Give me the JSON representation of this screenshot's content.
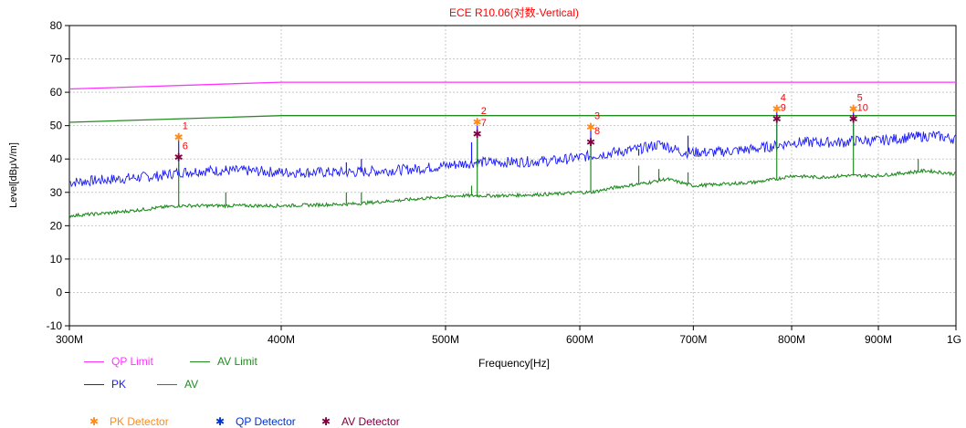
{
  "chart_data": {
    "type": "line",
    "title": "ECE R10.06(对数-Vertical)",
    "xlabel": "Frequency[Hz]",
    "ylabel": "Level[dBμV/m]",
    "x_scale": "log",
    "xlim": [
      300,
      1000
    ],
    "ylim": [
      -10,
      80
    ],
    "x_ticks": [
      300,
      400,
      500,
      600,
      700,
      800,
      900,
      1000
    ],
    "x_tick_labels": [
      "300M",
      "400M",
      "500M",
      "600M",
      "700M",
      "800M",
      "900M",
      "1G"
    ],
    "y_ticks": [
      -10,
      0,
      10,
      20,
      30,
      40,
      50,
      60,
      70,
      80
    ],
    "y_tick_labels": [
      "-10",
      "0",
      "10",
      "20",
      "30",
      "40",
      "50",
      "60",
      "70",
      "80"
    ],
    "grid": true,
    "colors": {
      "qp_limit": "#ff33ff",
      "av_limit": "#228b22",
      "pk": "#1a1aff",
      "av": "#228b22",
      "pk_detector": "#ff8c1a",
      "qp_detector": "#0033cc",
      "av_detector": "#800040",
      "marker_label": "#ff0000",
      "title": "#ff0000"
    },
    "series": [
      {
        "name": "QP Limit",
        "x": [
          300,
          400,
          1000
        ],
        "y": [
          61,
          63,
          63
        ]
      },
      {
        "name": "AV Limit",
        "x": [
          300,
          400,
          1000
        ],
        "y": [
          51,
          53,
          53
        ]
      },
      {
        "name": "PK",
        "x": [
          300,
          320,
          340,
          348,
          360,
          380,
          400,
          440,
          480,
          510,
          522,
          540,
          580,
          600,
          609,
          630,
          650,
          670,
          690,
          720,
          760,
          784,
          800,
          830,
          860,
          870,
          900,
          940,
          970,
          1000
        ],
        "y": [
          33,
          34,
          35,
          36,
          36.5,
          36.5,
          36,
          36,
          37,
          38.5,
          39,
          39,
          39.5,
          40.5,
          41,
          42,
          43,
          44.5,
          42,
          42,
          43,
          44,
          45,
          45,
          45,
          45.5,
          45.5,
          46.5,
          47,
          46
        ],
        "spikes": [
          [
            348,
            46.5
          ],
          [
            371,
            38
          ],
          [
            437,
            39
          ],
          [
            446,
            40
          ],
          [
            518,
            45
          ],
          [
            522,
            51
          ],
          [
            609,
            49.5
          ],
          [
            650,
            41
          ],
          [
            695,
            47
          ],
          [
            784,
            55
          ],
          [
            870,
            55
          ],
          [
            950,
            48
          ]
        ]
      },
      {
        "name": "AV",
        "x": [
          300,
          320,
          340,
          348,
          360,
          400,
          440,
          480,
          510,
          522,
          540,
          580,
          600,
          609,
          630,
          660,
          675,
          700,
          760,
          784,
          800,
          830,
          860,
          870,
          900,
          940,
          960,
          1000
        ],
        "y": [
          23,
          24,
          25.5,
          26,
          26,
          26,
          26.5,
          28,
          29,
          29,
          29,
          29.5,
          30,
          30,
          31.5,
          33,
          34,
          32,
          33,
          34,
          35,
          34.5,
          35,
          35,
          35,
          36,
          36.5,
          35.5
        ],
        "spikes": [
          [
            348,
            40.5
          ],
          [
            371,
            30
          ],
          [
            437,
            30
          ],
          [
            446,
            30
          ],
          [
            518,
            32
          ],
          [
            522,
            47.5
          ],
          [
            609,
            45
          ],
          [
            650,
            38
          ],
          [
            668,
            37
          ],
          [
            695,
            36
          ],
          [
            784,
            52
          ],
          [
            815,
            35
          ],
          [
            870,
            52
          ],
          [
            950,
            40
          ]
        ]
      }
    ],
    "markers": [
      {
        "label": "1",
        "type": "PK Detector",
        "x": 348,
        "y": 46.5
      },
      {
        "label": "6",
        "type": "AV Detector",
        "x": 348,
        "y": 40.5
      },
      {
        "label": "2",
        "type": "PK Detector",
        "x": 522,
        "y": 51
      },
      {
        "label": "7",
        "type": "AV Detector",
        "x": 522,
        "y": 47.5
      },
      {
        "label": "3",
        "type": "PK Detector",
        "x": 609,
        "y": 49.5
      },
      {
        "label": "8",
        "type": "AV Detector",
        "x": 609,
        "y": 45
      },
      {
        "label": "4",
        "type": "PK Detector",
        "x": 784,
        "y": 55
      },
      {
        "label": "9",
        "type": "AV Detector",
        "x": 784,
        "y": 52
      },
      {
        "label": "5",
        "type": "PK Detector",
        "x": 870,
        "y": 55
      },
      {
        "label": "10",
        "type": "AV Detector",
        "x": 870,
        "y": 52
      }
    ]
  },
  "legend": {
    "qp_limit": "QP Limit",
    "av_limit": "AV Limit",
    "pk": "PK",
    "av": "AV",
    "pk_detector": "PK Detector",
    "qp_detector": "QP Detector",
    "av_detector": "AV Detector"
  }
}
